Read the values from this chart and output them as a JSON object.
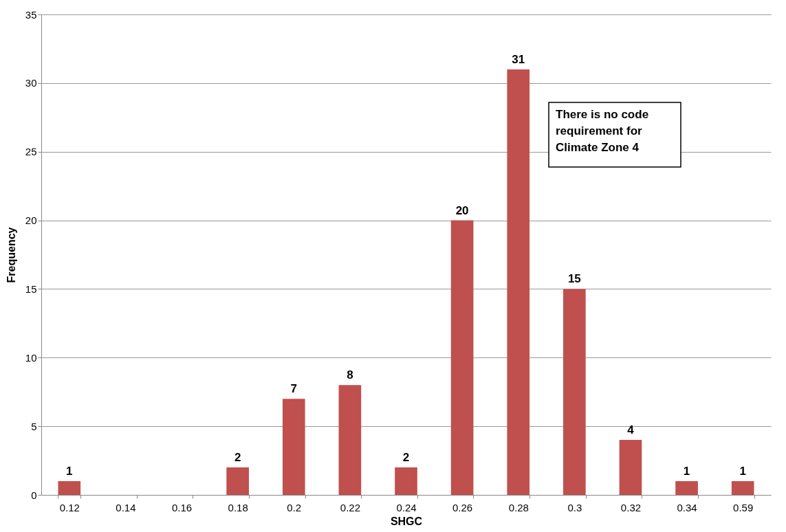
{
  "chart_data": {
    "type": "bar",
    "xlabel": "SHGC",
    "ylabel": "Frequency",
    "categories": [
      "0.12",
      "0.14",
      "0.16",
      "0.18",
      "0.2",
      "0.22",
      "0.24",
      "0.26",
      "0.28",
      "0.3",
      "0.32",
      "0.34",
      "0.59"
    ],
    "values": [
      1,
      0,
      0,
      2,
      7,
      8,
      2,
      20,
      31,
      15,
      4,
      1,
      1
    ],
    "value_labels": [
      "1",
      null,
      null,
      "2",
      "7",
      "8",
      "2",
      "20",
      "31",
      "15",
      "4",
      "1",
      "1"
    ],
    "color": "#c0504d",
    "ylim": [
      0,
      35
    ],
    "yticks": [
      0,
      5,
      10,
      15,
      20,
      25,
      30,
      35
    ],
    "grid": "y",
    "annotations": [
      "There is no code requirement for Climate Zone 4"
    ]
  }
}
